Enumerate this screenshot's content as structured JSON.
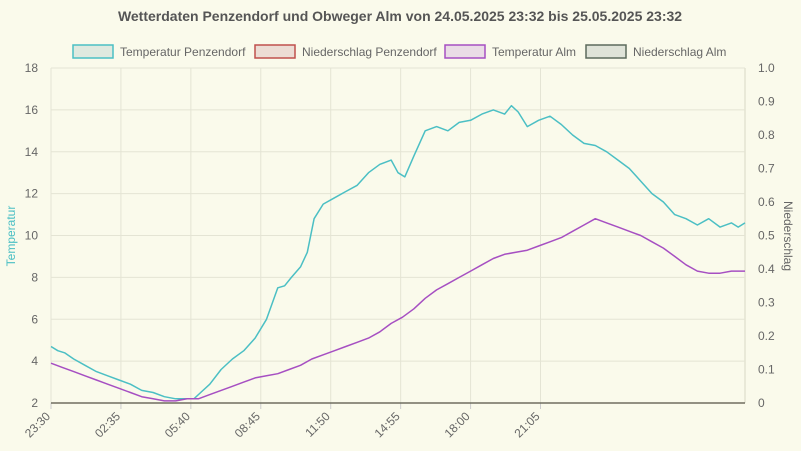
{
  "chart_data": {
    "type": "line",
    "title": "Wetterdaten Penzendorf und Obweger Alm von 24.05.2025 23:32 bis 25.05.2025 23:32",
    "ylabel_left": "Temperatur",
    "ylabel_right": "Niederschlag",
    "ylim_left": [
      2,
      18
    ],
    "ylim_right": [
      0,
      1
    ],
    "y_ticks_left": [
      "2",
      "4",
      "6",
      "8",
      "10",
      "12",
      "14",
      "16",
      "18"
    ],
    "y_ticks_right": [
      "0",
      "0.1",
      "0.2",
      "0.3",
      "0.4",
      "0.5",
      "0.6",
      "0.7",
      "0.8",
      "0.9",
      "1.0"
    ],
    "x_ticks": [
      "23:30",
      "02:35",
      "05:40",
      "08:45",
      "11:50",
      "14:55",
      "18:00",
      "21:05"
    ],
    "x_range_hours": [
      0,
      24
    ],
    "grid": true,
    "legend_position": "top",
    "colors": {
      "temp_penzendorf": "#4bbfc4",
      "rain_penzendorf": "#c0504d",
      "temp_alm": "#a64fc2",
      "rain_alm": "#5c6b5c"
    },
    "series": [
      {
        "name": "Temperatur Penzendorf",
        "axis": "left",
        "color_key": "temp_penzendorf",
        "points": [
          [
            0,
            4.7
          ],
          [
            0.3,
            4.5
          ],
          [
            0.6,
            4.4
          ],
          [
            1,
            4.1
          ],
          [
            1.5,
            3.8
          ],
          [
            2,
            3.5
          ],
          [
            2.5,
            3.3
          ],
          [
            3,
            3.1
          ],
          [
            3.5,
            2.9
          ],
          [
            4,
            2.6
          ],
          [
            4.5,
            2.5
          ],
          [
            5,
            2.3
          ],
          [
            5.5,
            2.2
          ],
          [
            6,
            2.2
          ],
          [
            6.3,
            2.2
          ],
          [
            6.6,
            2.5
          ],
          [
            7,
            2.9
          ],
          [
            7.5,
            3.6
          ],
          [
            8,
            4.1
          ],
          [
            8.5,
            4.5
          ],
          [
            9,
            5.1
          ],
          [
            9.5,
            6.0
          ],
          [
            10,
            7.5
          ],
          [
            10.3,
            7.6
          ],
          [
            10.6,
            8.0
          ],
          [
            11,
            8.5
          ],
          [
            11.3,
            9.2
          ],
          [
            11.6,
            10.8
          ],
          [
            12,
            11.5
          ],
          [
            12.5,
            11.8
          ],
          [
            13,
            12.1
          ],
          [
            13.5,
            12.4
          ],
          [
            14,
            13.0
          ],
          [
            14.5,
            13.4
          ],
          [
            15,
            13.6
          ],
          [
            15.3,
            13.0
          ],
          [
            15.6,
            12.8
          ],
          [
            16,
            13.8
          ],
          [
            16.5,
            15.0
          ],
          [
            17,
            15.2
          ],
          [
            17.5,
            15.0
          ],
          [
            18,
            15.4
          ],
          [
            18.5,
            15.5
          ],
          [
            19,
            15.8
          ],
          [
            19.5,
            16.0
          ],
          [
            20,
            15.8
          ],
          [
            20.3,
            16.2
          ],
          [
            20.6,
            15.9
          ],
          [
            21,
            15.2
          ],
          [
            21.5,
            15.5
          ],
          [
            22,
            15.7
          ],
          [
            22.5,
            15.3
          ],
          [
            23,
            14.8
          ],
          [
            23.5,
            14.4
          ],
          [
            24,
            14.3
          ],
          [
            24.5,
            14.0
          ],
          [
            25,
            13.6
          ],
          [
            25.5,
            13.2
          ],
          [
            26,
            12.6
          ],
          [
            26.5,
            12.0
          ],
          [
            27,
            11.6
          ],
          [
            27.5,
            11.0
          ],
          [
            28,
            10.8
          ],
          [
            28.5,
            10.5
          ],
          [
            29,
            10.8
          ],
          [
            29.5,
            10.4
          ],
          [
            30,
            10.6
          ],
          [
            30.3,
            10.4
          ],
          [
            30.6,
            10.6
          ]
        ]
      },
      {
        "name": "Niederschlag Penzendorf",
        "axis": "right",
        "color_key": "rain_penzendorf",
        "points": [
          [
            0,
            0
          ],
          [
            30.6,
            0
          ]
        ]
      },
      {
        "name": "Temperatur Alm",
        "axis": "left",
        "color_key": "temp_alm",
        "points": [
          [
            0,
            3.9
          ],
          [
            0.5,
            3.7
          ],
          [
            1,
            3.5
          ],
          [
            1.5,
            3.3
          ],
          [
            2,
            3.1
          ],
          [
            2.5,
            2.9
          ],
          [
            3,
            2.7
          ],
          [
            3.5,
            2.5
          ],
          [
            4,
            2.3
          ],
          [
            4.5,
            2.2
          ],
          [
            5,
            2.1
          ],
          [
            5.5,
            2.1
          ],
          [
            6,
            2.2
          ],
          [
            6.5,
            2.2
          ],
          [
            7,
            2.4
          ],
          [
            7.5,
            2.6
          ],
          [
            8,
            2.8
          ],
          [
            8.5,
            3.0
          ],
          [
            9,
            3.2
          ],
          [
            9.5,
            3.3
          ],
          [
            10,
            3.4
          ],
          [
            10.5,
            3.6
          ],
          [
            11,
            3.8
          ],
          [
            11.5,
            4.1
          ],
          [
            12,
            4.3
          ],
          [
            12.5,
            4.5
          ],
          [
            13,
            4.7
          ],
          [
            13.5,
            4.9
          ],
          [
            14,
            5.1
          ],
          [
            14.5,
            5.4
          ],
          [
            15,
            5.8
          ],
          [
            15.5,
            6.1
          ],
          [
            16,
            6.5
          ],
          [
            16.5,
            7.0
          ],
          [
            17,
            7.4
          ],
          [
            17.5,
            7.7
          ],
          [
            18,
            8.0
          ],
          [
            18.5,
            8.3
          ],
          [
            19,
            8.6
          ],
          [
            19.5,
            8.9
          ],
          [
            20,
            9.1
          ],
          [
            20.5,
            9.2
          ],
          [
            21,
            9.3
          ],
          [
            21.5,
            9.5
          ],
          [
            22,
            9.7
          ],
          [
            22.5,
            9.9
          ],
          [
            23,
            10.2
          ],
          [
            23.5,
            10.5
          ],
          [
            24,
            10.8
          ],
          [
            24.5,
            10.6
          ],
          [
            25,
            10.4
          ],
          [
            25.5,
            10.2
          ],
          [
            26,
            10.0
          ],
          [
            26.5,
            9.7
          ],
          [
            27,
            9.4
          ],
          [
            27.5,
            9.0
          ],
          [
            28,
            8.6
          ],
          [
            28.5,
            8.3
          ],
          [
            29,
            8.2
          ],
          [
            29.5,
            8.2
          ],
          [
            30,
            8.3
          ],
          [
            30.6,
            8.3
          ]
        ]
      },
      {
        "name": "Niederschlag Alm",
        "axis": "right",
        "color_key": "rain_alm",
        "points": [
          [
            0,
            0
          ],
          [
            30.6,
            0
          ]
        ]
      }
    ]
  }
}
